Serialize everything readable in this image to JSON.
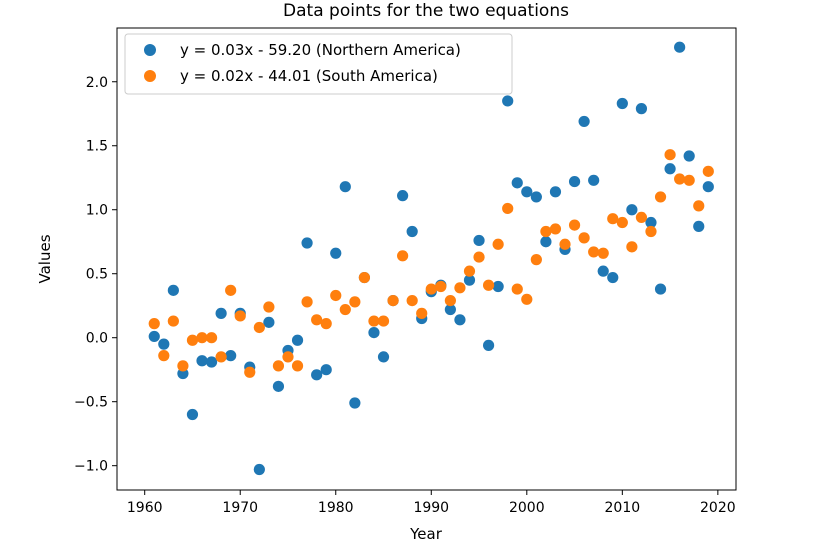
{
  "chart_data": {
    "type": "scatter",
    "title": "Data points for the two equations",
    "xlabel": "Year",
    "ylabel": "Values",
    "xlim": [
      1957.1,
      2021.9
    ],
    "ylim": [
      -1.19,
      2.42
    ],
    "xticks": [
      1960,
      1970,
      1980,
      1990,
      2000,
      2010,
      2020
    ],
    "xtick_labels": [
      "1960",
      "1970",
      "1980",
      "1990",
      "2000",
      "2010",
      "2020"
    ],
    "yticks": [
      -1.0,
      -0.5,
      0.0,
      0.5,
      1.0,
      1.5,
      2.0
    ],
    "ytick_labels": [
      "−1.0",
      "−0.5",
      "0.0",
      "0.5",
      "1.0",
      "1.5",
      "2.0"
    ],
    "grid": false,
    "legend_position": "top-left",
    "series": [
      {
        "name": "y = 0.03x - 59.20 (Northern America)",
        "color": "#1f77b4",
        "x": [
          1961,
          1962,
          1963,
          1964,
          1965,
          1966,
          1967,
          1968,
          1969,
          1970,
          1971,
          1972,
          1973,
          1974,
          1975,
          1976,
          1977,
          1978,
          1979,
          1980,
          1981,
          1982,
          1983,
          1984,
          1985,
          1986,
          1987,
          1988,
          1989,
          1990,
          1991,
          1992,
          1993,
          1994,
          1995,
          1996,
          1997,
          1998,
          1999,
          2000,
          2001,
          2002,
          2003,
          2004,
          2005,
          2006,
          2007,
          2008,
          2009,
          2010,
          2011,
          2012,
          2013,
          2014,
          2015,
          2016,
          2017,
          2018,
          2019
        ],
        "y": [
          0.01,
          -0.05,
          0.37,
          -0.28,
          -0.6,
          -0.18,
          -0.19,
          0.19,
          -0.14,
          0.19,
          -0.23,
          -1.03,
          0.12,
          -0.38,
          -0.1,
          -0.02,
          0.74,
          -0.29,
          -0.25,
          0.66,
          1.18,
          -0.51,
          0.47,
          0.04,
          -0.15,
          0.29,
          1.11,
          0.83,
          0.15,
          0.36,
          0.41,
          0.22,
          0.14,
          0.45,
          0.76,
          -0.06,
          0.4,
          1.85,
          1.21,
          1.14,
          1.1,
          0.75,
          1.14,
          0.69,
          1.22,
          1.69,
          1.23,
          0.52,
          0.47,
          1.83,
          1.0,
          1.79,
          0.9,
          0.38,
          1.32,
          2.27,
          1.42,
          0.87,
          1.18
        ]
      },
      {
        "name": "y = 0.02x - 44.01 (South America)",
        "color": "#ff7f0e",
        "x": [
          1961,
          1962,
          1963,
          1964,
          1965,
          1966,
          1967,
          1968,
          1969,
          1970,
          1971,
          1972,
          1973,
          1974,
          1975,
          1976,
          1977,
          1978,
          1979,
          1980,
          1981,
          1982,
          1983,
          1984,
          1985,
          1986,
          1987,
          1988,
          1989,
          1990,
          1991,
          1992,
          1993,
          1994,
          1995,
          1996,
          1997,
          1998,
          1999,
          2000,
          2001,
          2002,
          2003,
          2004,
          2005,
          2006,
          2007,
          2008,
          2009,
          2010,
          2011,
          2012,
          2013,
          2014,
          2015,
          2016,
          2017,
          2018,
          2019
        ],
        "y": [
          0.11,
          -0.14,
          0.13,
          -0.22,
          -0.02,
          0.0,
          0.0,
          -0.15,
          0.37,
          0.17,
          -0.27,
          0.08,
          0.24,
          -0.22,
          -0.15,
          -0.22,
          0.28,
          0.14,
          0.11,
          0.33,
          0.22,
          0.28,
          0.47,
          0.13,
          0.13,
          0.29,
          0.64,
          0.29,
          0.19,
          0.38,
          0.4,
          0.29,
          0.39,
          0.52,
          0.63,
          0.41,
          0.73,
          1.01,
          0.38,
          0.3,
          0.61,
          0.83,
          0.85,
          0.73,
          0.88,
          0.78,
          0.67,
          0.66,
          0.93,
          0.9,
          0.71,
          0.94,
          0.83,
          1.1,
          1.43,
          1.24,
          1.23,
          1.03,
          1.3
        ]
      }
    ]
  }
}
